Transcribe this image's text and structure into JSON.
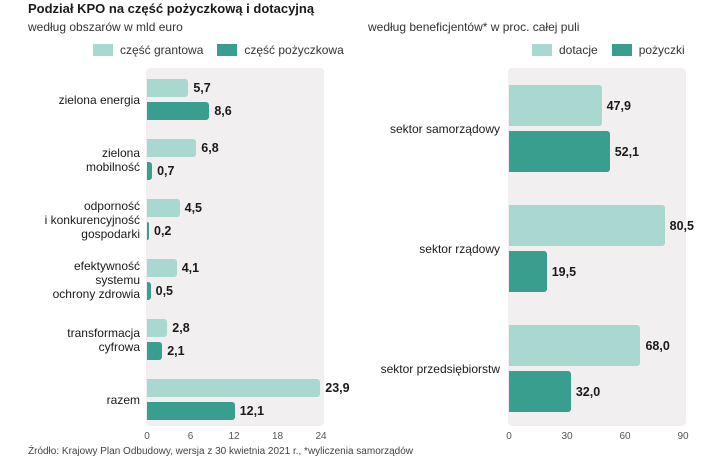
{
  "title": "Podział KPO na część pożyczkową i dotacyjną",
  "source": "Źródło: Krajowy Plan Odbudowy, wersja z 30 kwietnia 2021 r., *wyliczenia samorządów",
  "colors": {
    "light": "#a9d8d1",
    "dark": "#3a9e8e",
    "panel": "#f2eff1"
  },
  "chart_data": [
    {
      "type": "bar",
      "orientation": "horizontal",
      "subtitle": "według obszarów  w mld euro",
      "categories": [
        "zielona energia",
        "zielona\nmobilność",
        "odporność\ni konkurencyjność\ngospodarki",
        "efektywność\nsystemu\nochrony zdrowia",
        "transformacja\ncyfrowa",
        "razem"
      ],
      "series": [
        {
          "name": "część grantowa",
          "values": [
            5.7,
            6.8,
            4.5,
            4.1,
            2.8,
            23.9
          ],
          "labels": [
            "5,7",
            "6,8",
            "4,5",
            "4,1",
            "2,8",
            "23,9"
          ]
        },
        {
          "name": "część pożyczkowa",
          "values": [
            8.6,
            0.7,
            0.2,
            0.5,
            2.1,
            12.1
          ],
          "labels": [
            "8,6",
            "0,7",
            "0,2",
            "0,5",
            "2,1",
            "12,1"
          ]
        }
      ],
      "xlim": [
        0,
        24
      ],
      "xticks": [
        "0",
        "6",
        "12",
        "18",
        "24"
      ],
      "legend": "top"
    },
    {
      "type": "bar",
      "orientation": "horizontal",
      "subtitle": "według beneficjentów* w proc. całej puli",
      "categories": [
        "sektor samorządowy",
        "sektor rządowy",
        "sektor przedsiębiorstw"
      ],
      "series": [
        {
          "name": "dotacje",
          "values": [
            47.9,
            80.5,
            68.0
          ],
          "labels": [
            "47,9",
            "80,5",
            "68,0"
          ]
        },
        {
          "name": "pożyczki",
          "values": [
            52.1,
            19.5,
            32.0
          ],
          "labels": [
            "52,1",
            "19,5",
            "32,0"
          ]
        }
      ],
      "xlim": [
        0,
        90
      ],
      "xticks": [
        "0",
        "30",
        "60",
        "90"
      ],
      "legend": "top-right"
    }
  ]
}
